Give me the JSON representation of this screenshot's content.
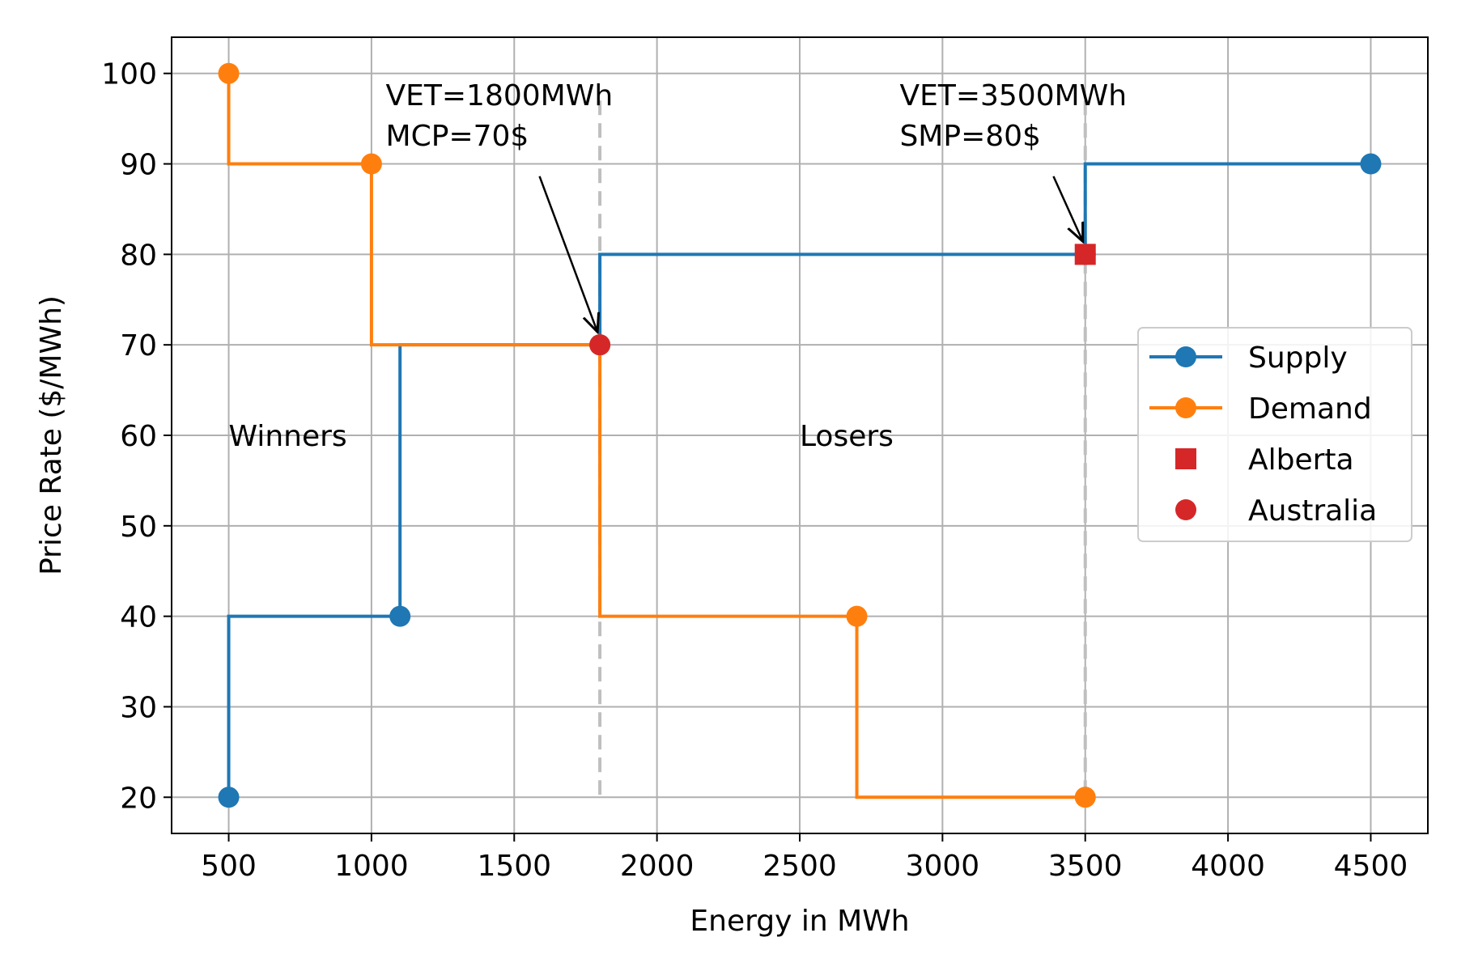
{
  "chart_data": {
    "type": "line",
    "title": "",
    "xlabel": "Energy in MWh",
    "ylabel": "Price Rate ($/MWh)",
    "xlim": [
      300,
      4700
    ],
    "ylim": [
      16,
      104
    ],
    "xticks": [
      500,
      1000,
      1500,
      2000,
      2500,
      3000,
      3500,
      4000,
      4500
    ],
    "yticks": [
      20,
      30,
      40,
      50,
      60,
      70,
      80,
      90,
      100
    ],
    "grid": true,
    "legend_position": "center-right",
    "series": [
      {
        "name": "Supply",
        "color": "#1f77b4",
        "step_points": [
          [
            500,
            20
          ],
          [
            500,
            40
          ],
          [
            1100,
            40
          ],
          [
            1100,
            70
          ],
          [
            1800,
            70
          ],
          [
            1800,
            80
          ],
          [
            3500,
            80
          ],
          [
            3500,
            90
          ],
          [
            4500,
            90
          ]
        ],
        "markers": [
          [
            500,
            20
          ],
          [
            1100,
            40
          ],
          [
            1800,
            70
          ],
          [
            3500,
            80
          ],
          [
            4500,
            90
          ]
        ]
      },
      {
        "name": "Demand",
        "color": "#ff7f0e",
        "step_points": [
          [
            500,
            100
          ],
          [
            500,
            90
          ],
          [
            1000,
            90
          ],
          [
            1000,
            70
          ],
          [
            1800,
            70
          ],
          [
            1800,
            40
          ],
          [
            2700,
            40
          ],
          [
            2700,
            20
          ],
          [
            3500,
            20
          ]
        ],
        "markers": [
          [
            500,
            100
          ],
          [
            1000,
            90
          ],
          [
            1800,
            70
          ],
          [
            2700,
            40
          ],
          [
            3500,
            20
          ]
        ]
      }
    ],
    "points": [
      {
        "name": "Alberta",
        "x": 3500,
        "y": 80,
        "marker": "square",
        "color": "#d62728"
      },
      {
        "name": "Australia",
        "x": 1800,
        "y": 70,
        "marker": "circle",
        "color": "#d62728"
      }
    ],
    "vlines": [
      {
        "x": 1800,
        "y_range": [
          20,
          97
        ],
        "color": "#bfbfbf",
        "style": "dashed"
      },
      {
        "x": 3500,
        "y_range": [
          20,
          97
        ],
        "color": "#bfbfbf",
        "style": "dashed"
      }
    ],
    "annotations": [
      {
        "lines": [
          "VET=1800MWh",
          " MCP=70$"
        ],
        "text_at": [
          1050,
          96.5
        ],
        "arrow_to": [
          1800,
          70
        ]
      },
      {
        "lines": [
          "VET=3500MWh",
          " SMP=80$"
        ],
        "text_at": [
          2850,
          96.5
        ],
        "arrow_to": [
          3500,
          80
        ]
      }
    ],
    "labels": [
      {
        "text": "Winners",
        "x": 500,
        "y": 60
      },
      {
        "text": "Losers",
        "x": 2500,
        "y": 60
      }
    ]
  }
}
